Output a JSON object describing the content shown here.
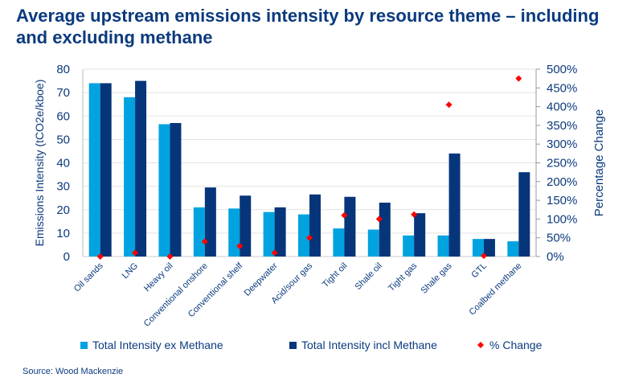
{
  "title": "Average upstream emissions intensity by resource theme – including and excluding methane",
  "source": "Source: Wood Mackenzie",
  "colors": {
    "ex": "#00a3e0",
    "incl": "#06357a",
    "pct": "#ff0000",
    "text": "#0b3a7e"
  },
  "chart_data": {
    "type": "bar",
    "categories": [
      "Oil sands",
      "LNG",
      "Heavy oil",
      "Conventional onshore",
      "Conventional shelf",
      "Deepwater",
      "Acid/sour gas",
      "Tight oil",
      "Shale oil",
      "Tight gas",
      "Shale gas",
      "GTL",
      "Coalbed methane"
    ],
    "series": [
      {
        "name": "Total Intensity ex Methane",
        "type": "bar",
        "axis": "left",
        "values": [
          74,
          68,
          56.5,
          21,
          20.5,
          19,
          18,
          12,
          11.5,
          9,
          9,
          7.5,
          6.5
        ]
      },
      {
        "name": "Total Intensity incl Methane",
        "type": "bar",
        "axis": "left",
        "values": [
          74,
          75,
          57,
          29.5,
          26,
          21,
          26.5,
          25.5,
          23,
          18.5,
          44,
          7.5,
          36
        ]
      },
      {
        "name": "% Change",
        "type": "scatter",
        "axis": "right",
        "values": [
          0,
          10,
          0,
          40,
          28,
          10,
          50,
          110,
          100,
          112,
          405,
          2,
          475
        ]
      }
    ],
    "ylabel": "Emissions Intensity (tCO2e/kboe)",
    "ylim": [
      0,
      80
    ],
    "yticks": [
      "0",
      "10",
      "20",
      "30",
      "40",
      "50",
      "60",
      "70",
      "80"
    ],
    "y2label": "Percentage Change",
    "y2lim": [
      0,
      500
    ],
    "y2ticks": [
      "0%",
      "50%",
      "100%",
      "150%",
      "200%",
      "250%",
      "300%",
      "350%",
      "400%",
      "450%",
      "500%"
    ],
    "grid": true,
    "legend": "bottom"
  }
}
